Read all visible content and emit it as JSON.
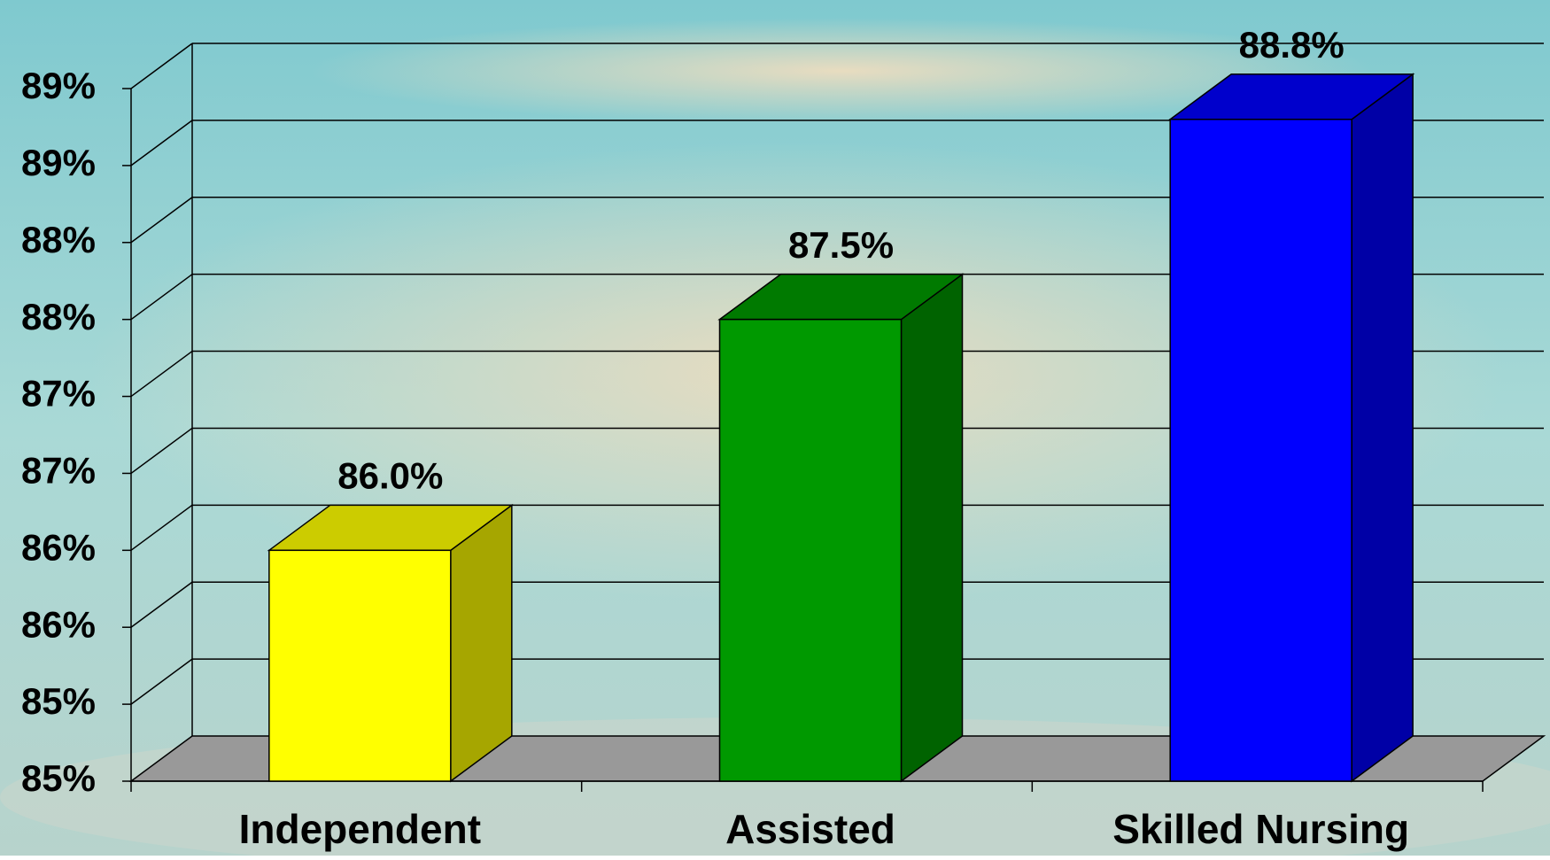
{
  "chart_data": {
    "type": "bar3d",
    "categories": [
      "Independent",
      "Assisted",
      "Skilled Nursing"
    ],
    "values": [
      86.0,
      87.5,
      88.8
    ],
    "value_labels": [
      "86.0%",
      "87.5%",
      "88.8%"
    ],
    "colors": [
      "#ffff00",
      "#009900",
      "#0000ff"
    ],
    "ylim": [
      84.5,
      89.0
    ],
    "yticks": [
      {
        "value": 84.5,
        "label": "85%"
      },
      {
        "value": 85.0,
        "label": "85%"
      },
      {
        "value": 85.5,
        "label": "86%"
      },
      {
        "value": 86.0,
        "label": "86%"
      },
      {
        "value": 86.5,
        "label": "87%"
      },
      {
        "value": 87.0,
        "label": "87%"
      },
      {
        "value": 87.5,
        "label": "88%"
      },
      {
        "value": 88.0,
        "label": "88%"
      },
      {
        "value": 88.5,
        "label": "89%"
      },
      {
        "value": 89.0,
        "label": "89%"
      }
    ],
    "grid": true
  }
}
